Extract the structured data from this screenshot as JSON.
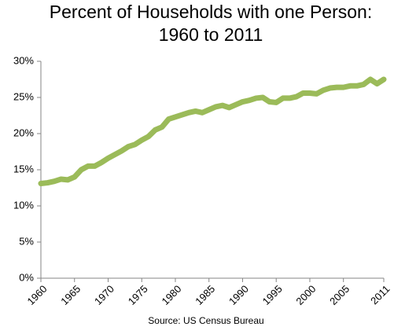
{
  "chart_data": {
    "type": "line",
    "title": [
      "Percent of Households with one Person:",
      "1960 to 2011"
    ],
    "source": "Source: US Census Bureau",
    "x": [
      1960,
      1961,
      1962,
      1963,
      1964,
      1965,
      1966,
      1967,
      1968,
      1969,
      1970,
      1971,
      1972,
      1973,
      1974,
      1975,
      1976,
      1977,
      1978,
      1979,
      1980,
      1981,
      1982,
      1983,
      1984,
      1985,
      1986,
      1987,
      1988,
      1989,
      1990,
      1991,
      1992,
      1993,
      1994,
      1995,
      1996,
      1997,
      1998,
      1999,
      2000,
      2001,
      2002,
      2003,
      2004,
      2005,
      2006,
      2007,
      2008,
      2009,
      2010,
      2011
    ],
    "series": [
      {
        "name": "Percent of households with one person",
        "color": "#9bbb59",
        "values": [
          13.1,
          13.2,
          13.4,
          13.7,
          13.6,
          14.0,
          15.0,
          15.5,
          15.5,
          16.0,
          16.6,
          17.1,
          17.6,
          18.2,
          18.5,
          19.1,
          19.6,
          20.5,
          20.9,
          22.0,
          22.3,
          22.6,
          22.9,
          23.1,
          22.9,
          23.3,
          23.7,
          23.9,
          23.6,
          24.0,
          24.4,
          24.6,
          24.9,
          25.0,
          24.4,
          24.3,
          24.9,
          24.9,
          25.1,
          25.6,
          25.6,
          25.5,
          26.0,
          26.3,
          26.4,
          26.4,
          26.6,
          26.6,
          26.8,
          27.5,
          26.9,
          27.5
        ]
      }
    ],
    "xlim": [
      1960,
      2011
    ],
    "xticks": [
      1960,
      1965,
      1970,
      1975,
      1980,
      1985,
      1990,
      1995,
      2000,
      2005,
      2011
    ],
    "ylim": [
      0,
      30
    ],
    "yticks": [
      {
        "value": 0,
        "label": "0%"
      },
      {
        "value": 5,
        "label": "5%"
      },
      {
        "value": 10,
        "label": "10%"
      },
      {
        "value": 15,
        "label": "15%"
      },
      {
        "value": 20,
        "label": "20%"
      },
      {
        "value": 25,
        "label": "25%"
      },
      {
        "value": 30,
        "label": "30%"
      }
    ],
    "grid": false
  }
}
